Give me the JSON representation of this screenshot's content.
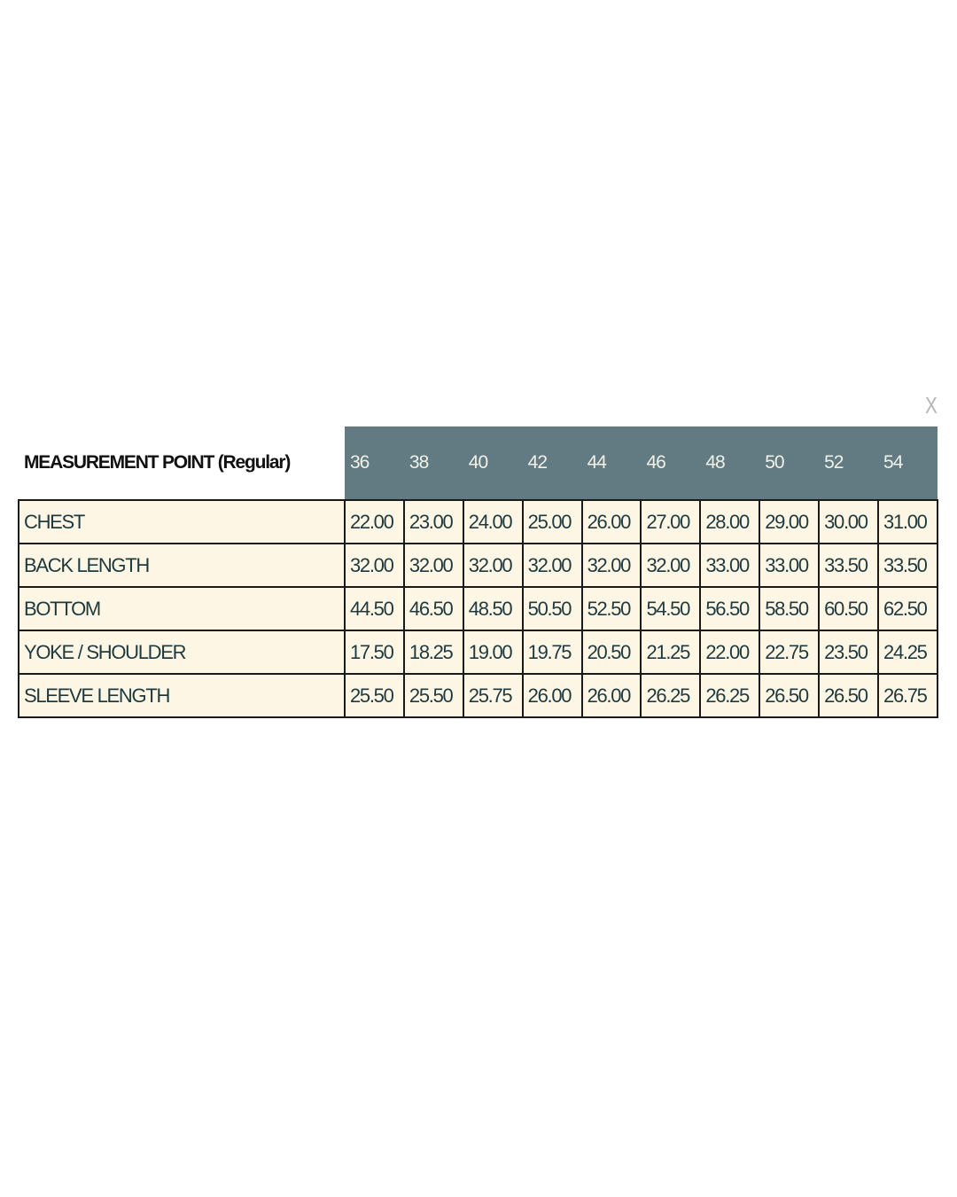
{
  "close_label": "X",
  "table": {
    "header_label": "MEASUREMENT POINT (Regular)",
    "sizes": [
      "36",
      "38",
      "40",
      "42",
      "44",
      "46",
      "48",
      "50",
      "52",
      "54"
    ],
    "header_color": "#627a82",
    "cell_color": "#fdf6e4",
    "rows": [
      {
        "label": "CHEST",
        "values": [
          "22.00",
          "23.00",
          "24.00",
          "25.00",
          "26.00",
          "27.00",
          "28.00",
          "29.00",
          "30.00",
          "31.00"
        ]
      },
      {
        "label": "BACK LENGTH",
        "values": [
          "32.00",
          "32.00",
          "32.00",
          "32.00",
          "32.00",
          "32.00",
          "33.00",
          "33.00",
          "33.50",
          "33.50"
        ]
      },
      {
        "label": "BOTTOM",
        "values": [
          "44.50",
          "46.50",
          "48.50",
          "50.50",
          "52.50",
          "54.50",
          "56.50",
          "58.50",
          "60.50",
          "62.50"
        ]
      },
      {
        "label": "YOKE / SHOULDER",
        "values": [
          "17.50",
          "18.25",
          "19.00",
          "19.75",
          "20.50",
          "21.25",
          "22.00",
          "22.75",
          "23.50",
          "24.25"
        ]
      },
      {
        "label": "SLEEVE LENGTH",
        "values": [
          "25.50",
          "25.50",
          "25.75",
          "26.00",
          "26.00",
          "26.25",
          "26.25",
          "26.50",
          "26.50",
          "26.75"
        ]
      }
    ]
  }
}
